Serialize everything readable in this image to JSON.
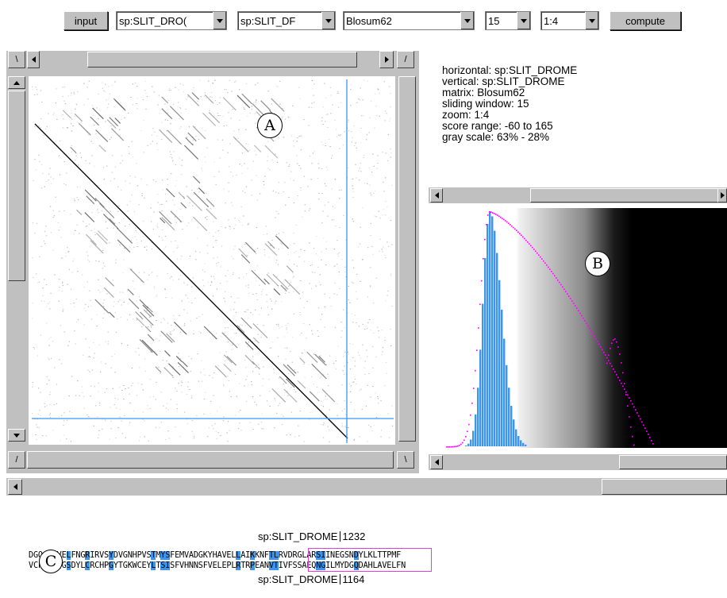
{
  "toolbar": {
    "input_label": "input",
    "horizontal_select": "sp:SLIT_DRO(",
    "vertical_select": "sp:SLIT_DF",
    "matrix_select": "Blosum62",
    "window_select": "15",
    "zoom_select": "1:4",
    "compute_label": "compute"
  },
  "corner_labels": {
    "tl": "\\",
    "tr": "/",
    "bl": "/",
    "br": "\\"
  },
  "info": {
    "horizontal": "horizontal: sp:SLIT_DROME",
    "vertical": "vertical: sp:SLIT_DROME",
    "matrix": "matrix: Blosum62",
    "window": "sliding window: 15",
    "zoom": "zoom: 1:4",
    "score_range": "score range: -60 to 165",
    "gray_scale": "gray scale: 63% - 28%"
  },
  "markers": {
    "a": "A",
    "b": "B",
    "c": "C"
  },
  "alignment": {
    "top_label": "sp:SLIT_DROME",
    "top_pos": "1232",
    "bottom_label": "sp:SLIT_DROME",
    "bottom_pos": "1164",
    "row1": "DGQ  AVELFNGRIRVSYDVGNHPVSTMYSFEMVADGKYHAVELLAIKKNFTLRVDRGLARSIINEGSNDYLKLTTPMF",
    "row2": "VCF  AQGSDYLCRCHPGYTGKWCEYLTSISFVHNNSFVELEPLRTRPEANVTIVFSSAEQNGILMYDGQDAHLAVELFN",
    "row1_hl": [
      8,
      12,
      17,
      26,
      28,
      29,
      44,
      47,
      51,
      52,
      61,
      62,
      69
    ],
    "row2_hl": [
      8,
      12,
      17,
      26,
      28,
      29,
      44,
      47,
      51,
      52,
      61,
      62,
      69
    ]
  },
  "colors": {
    "accent": "#3c96f0",
    "histogram_curve": "#ff00ff",
    "highlight_box": "#e040e0"
  }
}
